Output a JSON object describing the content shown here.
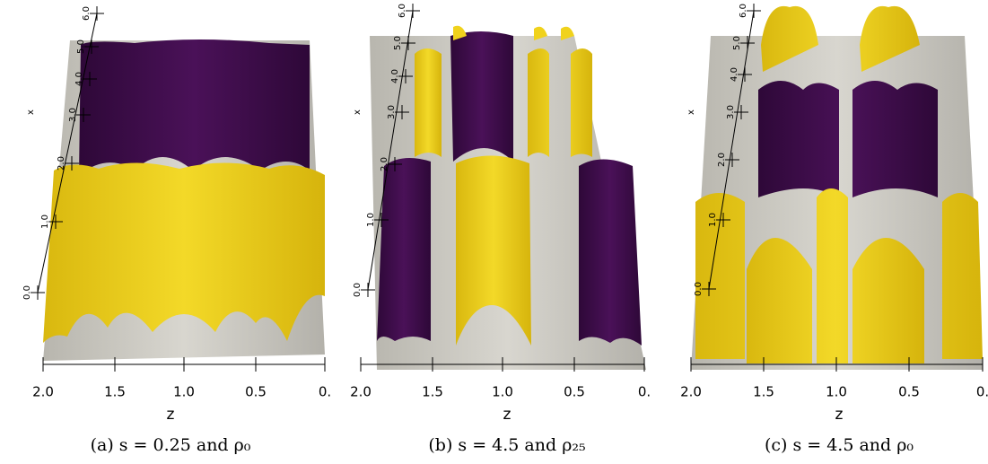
{
  "panels": [
    {
      "x_label": "x",
      "x_ticks": [
        "0.0",
        "1.0",
        "2.0",
        "3.0",
        "4.0",
        "5.0",
        "6.0"
      ],
      "z_label": "z",
      "z_ticks": [
        "2.0",
        "1.5",
        "1.0",
        "0.5",
        "0."
      ],
      "caption": "(a) s = 0.25 and ρ₀"
    },
    {
      "x_label": "x",
      "x_ticks": [
        "0.0",
        "1.0",
        "2.0",
        "3.0",
        "4.0",
        "5.0",
        "6.0"
      ],
      "z_label": "z",
      "z_ticks": [
        "2.0",
        "1.5",
        "1.0",
        "0.5",
        "0."
      ],
      "caption": "(b) s = 4.5 and ρ₂₅"
    },
    {
      "x_label": "x",
      "x_ticks": [
        "0.0",
        "1.0",
        "2.0",
        "3.0",
        "4.0",
        "5.0",
        "6.0"
      ],
      "z_label": "z",
      "z_ticks": [
        "2.0",
        "1.5",
        "1.0",
        "0.5",
        "0."
      ],
      "caption": "(c) s = 4.5 and ρ₀"
    }
  ]
}
